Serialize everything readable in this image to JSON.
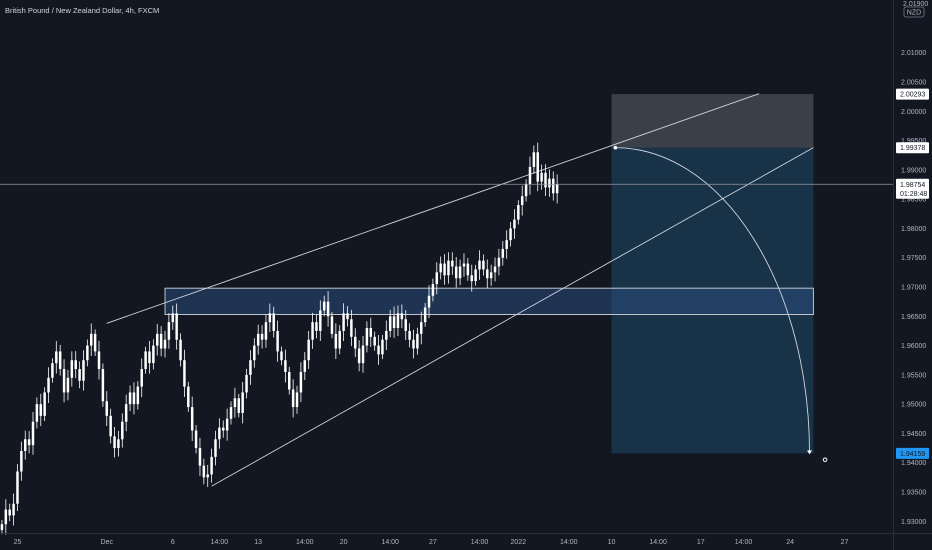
{
  "header": {
    "symbol_title": "British Pound / New Zealand Dollar, 4h, FXCM"
  },
  "currency_badge": {
    "top": "2.01900",
    "label": "NZD"
  },
  "colors": {
    "background": "#131722",
    "candle": "#ffffff",
    "trendline": "#d1d4dc",
    "zone_fill": "#2a4a7a",
    "stop_fill": "#5d606b",
    "target_fill": "#1e4a66",
    "last_price_tag": "#ffffff",
    "target_tag": "#2196f3"
  },
  "chart_data": {
    "type": "candlestick",
    "symbol": "GBPNZD",
    "interval": "4h",
    "source": "FXCM",
    "ylim": [
      1.928,
      2.019
    ],
    "y_ticks": [
      "2.01000",
      "2.00500",
      "2.00000",
      "1.99500",
      "1.99000",
      "1.98500",
      "1.98000",
      "1.97500",
      "1.97000",
      "1.96500",
      "1.96000",
      "1.95500",
      "1.95000",
      "1.94500",
      "1.94000",
      "1.93500",
      "1.93000"
    ],
    "x_ticks": [
      {
        "label": "25",
        "i": 4
      },
      {
        "label": "Dec",
        "i": 27
      },
      {
        "label": "6",
        "i": 44
      },
      {
        "label": "14:00",
        "i": 56
      },
      {
        "label": "13",
        "i": 66
      },
      {
        "label": "14:00",
        "i": 78
      },
      {
        "label": "20",
        "i": 88
      },
      {
        "label": "14:00",
        "i": 100
      },
      {
        "label": "27",
        "i": 111
      },
      {
        "label": "14:00",
        "i": 123
      },
      {
        "label": "2022",
        "i": 133
      },
      {
        "label": "14:00",
        "i": 146
      },
      {
        "label": "10",
        "i": 157
      },
      {
        "label": "14:00",
        "i": 169
      },
      {
        "label": "17",
        "i": 180
      },
      {
        "label": "14:00",
        "i": 191
      },
      {
        "label": "24",
        "i": 203
      },
      {
        "label": "27",
        "i": 217
      }
    ],
    "bars_visible": 230,
    "closes": [
      1.9295,
      1.932,
      1.931,
      1.933,
      1.9385,
      1.942,
      1.944,
      1.943,
      1.947,
      1.95,
      1.948,
      1.952,
      1.9545,
      1.957,
      1.959,
      1.956,
      1.952,
      1.9545,
      1.9575,
      1.956,
      1.954,
      1.9575,
      1.96,
      1.962,
      1.959,
      1.956,
      1.9505,
      1.948,
      1.9445,
      1.9425,
      1.944,
      1.947,
      1.95,
      1.952,
      1.95,
      1.953,
      1.956,
      1.959,
      1.957,
      1.96,
      1.962,
      1.9595,
      1.961,
      1.964,
      1.9655,
      1.961,
      1.9575,
      1.953,
      1.9495,
      1.9455,
      1.9425,
      1.9395,
      1.9375,
      1.938,
      1.941,
      1.944,
      1.946,
      1.9455,
      1.9475,
      1.9495,
      1.951,
      1.9485,
      1.952,
      1.955,
      1.9575,
      1.96,
      1.962,
      1.961,
      1.964,
      1.9655,
      1.9625,
      1.959,
      1.9575,
      1.9555,
      1.9525,
      1.9495,
      1.952,
      1.9555,
      1.9575,
      1.961,
      1.964,
      1.9625,
      1.966,
      1.9675,
      1.965,
      1.962,
      1.9595,
      1.9625,
      1.9655,
      1.9645,
      1.9615,
      1.9595,
      1.957,
      1.96,
      1.963,
      1.9615,
      1.96,
      1.9585,
      1.961,
      1.9625,
      1.965,
      1.963,
      1.9655,
      1.9645,
      1.9625,
      1.961,
      1.9595,
      1.962,
      1.964,
      1.9665,
      1.9685,
      1.9705,
      1.9725,
      1.974,
      1.972,
      1.9745,
      1.9735,
      1.9715,
      1.9735,
      1.974,
      1.972,
      1.971,
      1.973,
      1.9745,
      1.973,
      1.9715,
      1.9725,
      1.9735,
      1.975,
      1.9765,
      1.978,
      1.98,
      1.9815,
      1.984,
      1.9855,
      1.9875,
      1.9905,
      1.993,
      1.988,
      1.9895,
      1.987,
      1.9885,
      1.986,
      1.9875
    ],
    "price_tags": [
      {
        "value": "2.00293",
        "kind": "stop"
      },
      {
        "value": "1.99378",
        "kind": "entry"
      },
      {
        "value": "1.98754",
        "kind": "last"
      },
      {
        "value": "01:28:48",
        "kind": "countdown"
      },
      {
        "value": "1.94159",
        "kind": "target"
      }
    ],
    "last_price": 1.98754,
    "drawings": {
      "horizontal_zone": {
        "from_i": 42,
        "to_i": 209,
        "top": 1.9698,
        "bottom": 1.9653
      },
      "upper_trendline": {
        "from": {
          "i": 27,
          "y": 1.9638
        },
        "to": {
          "i": 195,
          "y": 2.003
        }
      },
      "lower_trendline": {
        "from": {
          "i": 54,
          "y": 1.936
        },
        "to": {
          "i": 209,
          "y": 1.9938
        }
      },
      "position": {
        "from_i": 157,
        "to_i": 209,
        "stop": 2.00293,
        "entry": 1.99378,
        "target": 1.94159
      },
      "arc": {
        "start": {
          "i": 158,
          "y": 1.99378
        },
        "end": {
          "i": 208,
          "y": 1.94159
        }
      },
      "marker": {
        "i": 212,
        "y": 1.9405
      }
    }
  }
}
